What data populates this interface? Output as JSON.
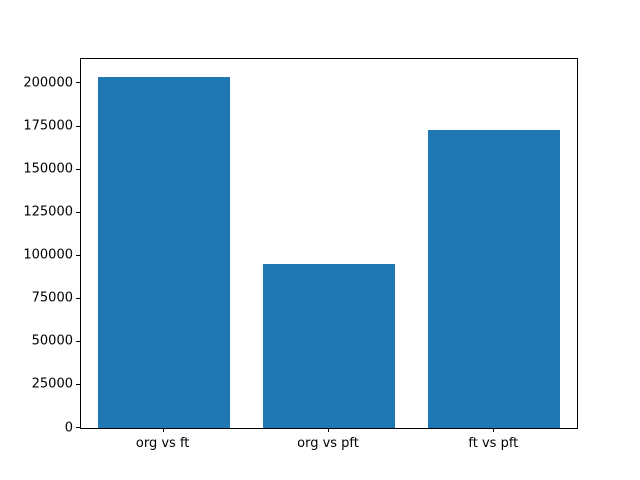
{
  "chart_data": {
    "type": "bar",
    "categories": [
      "org vs ft",
      "org vs pft",
      "ft vs pft"
    ],
    "values": [
      204000,
      95000,
      173000
    ],
    "title": "",
    "xlabel": "",
    "ylabel": "",
    "ylim": [
      0,
      214200
    ],
    "yticks": [
      0,
      25000,
      50000,
      75000,
      100000,
      125000,
      150000,
      175000,
      200000
    ],
    "bar_color": "#1f77b4",
    "bar_width_fraction": 0.8,
    "grid": false,
    "legend_position": "none",
    "background_color": "#ffffff",
    "spine_color": "#000000"
  }
}
